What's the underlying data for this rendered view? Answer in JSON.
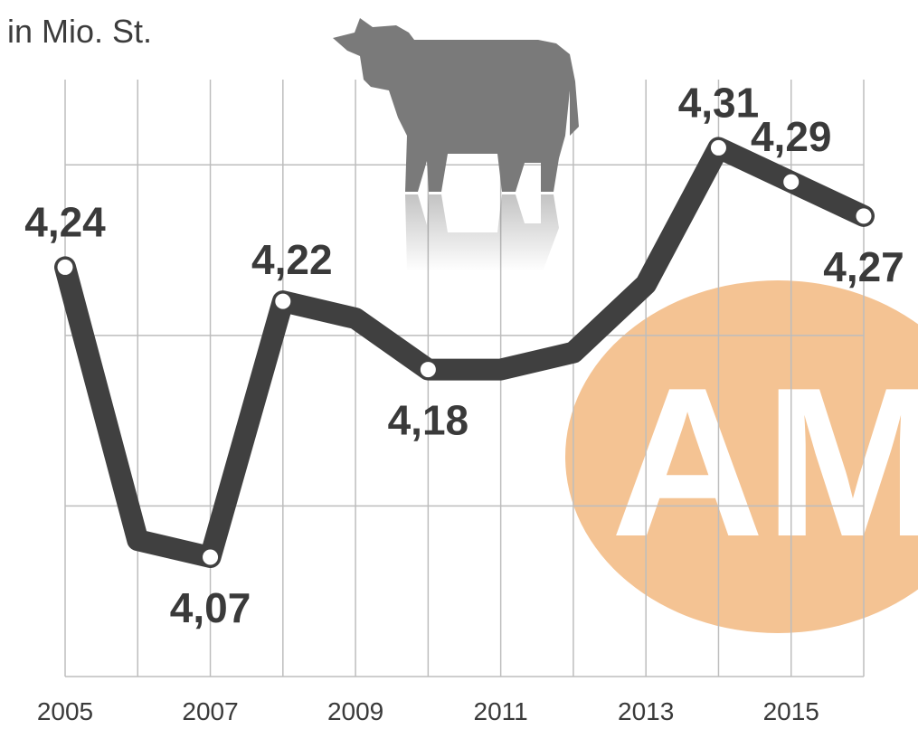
{
  "unit_label": "in Mio. St.",
  "colors": {
    "line": "#404040",
    "grid": "#bdbdbd",
    "badge": "#f4c393",
    "cow": "#7a7a7a"
  },
  "chart_data": {
    "type": "line",
    "ylabel": "in Mio. St.",
    "x": [
      2005,
      2006,
      2007,
      2008,
      2009,
      2010,
      2011,
      2012,
      2013,
      2014,
      2015,
      2016
    ],
    "x_tick_labels": [
      "2005",
      "2007",
      "2009",
      "2011",
      "2013",
      "2015"
    ],
    "ylim": [
      4.0,
      4.35
    ],
    "grid": true,
    "series": [
      {
        "values": [
          4.24,
          4.08,
          4.07,
          4.22,
          4.21,
          4.18,
          4.18,
          4.19,
          4.23,
          4.31,
          4.29,
          4.27
        ],
        "markers": [
          2005,
          2007,
          2008,
          2010,
          2014,
          2015,
          2016
        ]
      }
    ],
    "data_labels": [
      {
        "x": 2005,
        "text": "4,24",
        "pos": "above"
      },
      {
        "x": 2007,
        "text": "4,07",
        "pos": "below"
      },
      {
        "x": 2008,
        "text": "4,22",
        "pos": "above-right"
      },
      {
        "x": 2010,
        "text": "4,18",
        "pos": "below"
      },
      {
        "x": 2014,
        "text": "4,31",
        "pos": "above"
      },
      {
        "x": 2015,
        "text": "4,29",
        "pos": "above"
      },
      {
        "x": 2016,
        "text": "4,27",
        "pos": "below"
      }
    ]
  },
  "watermark": {
    "badge_text": "AM"
  },
  "icons": {
    "illustration": "cow-icon"
  }
}
